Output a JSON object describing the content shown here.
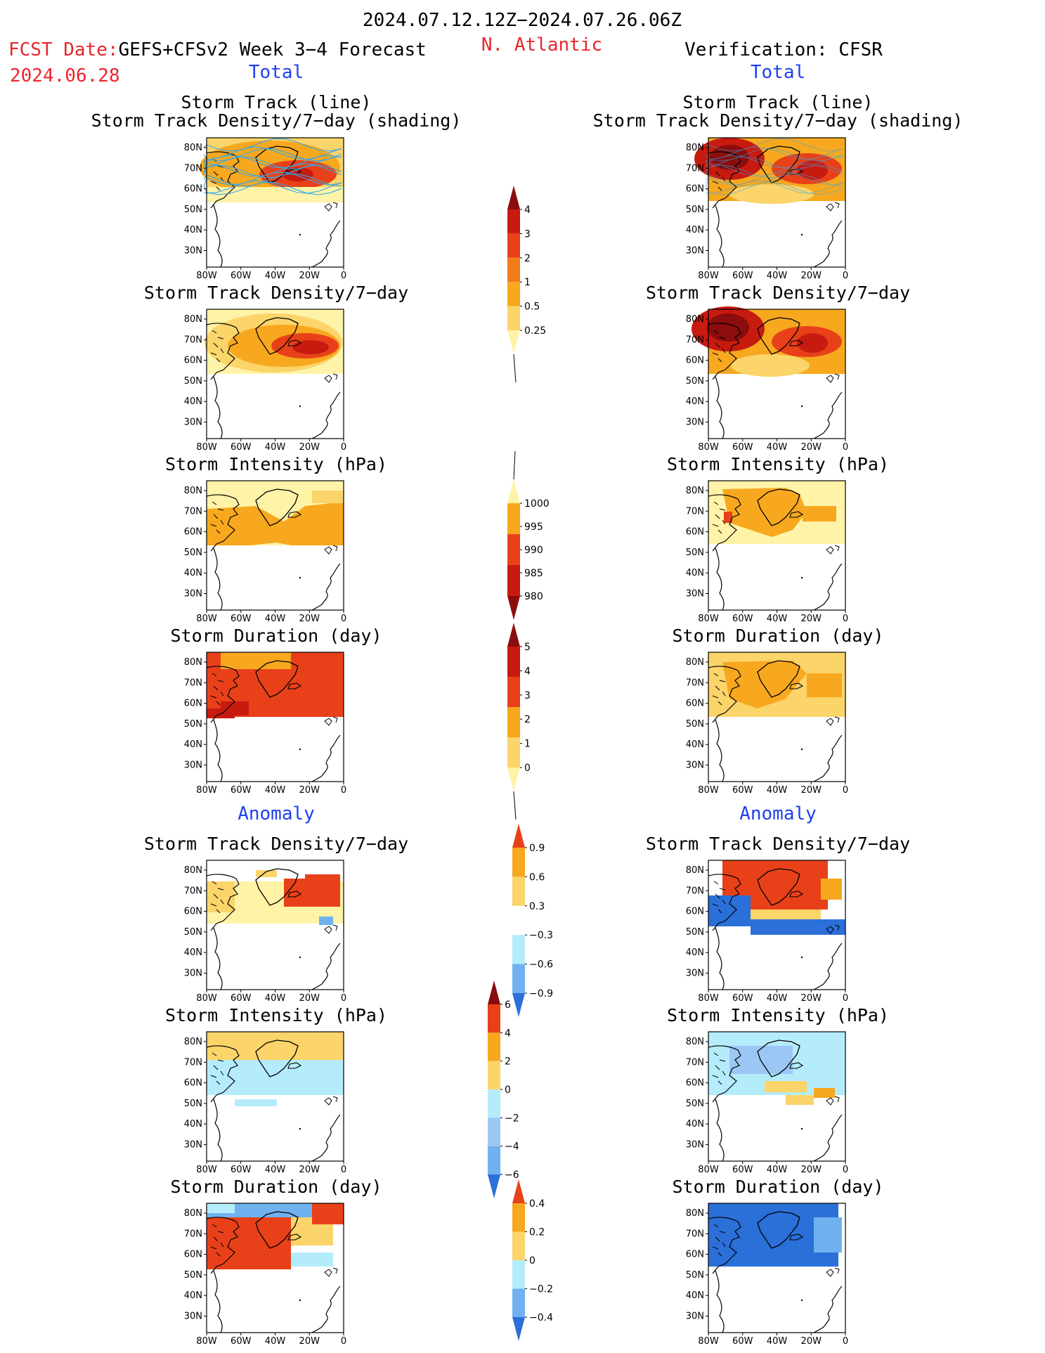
{
  "header": {
    "period": "2024.07.12.12Z−2024.07.26.06Z",
    "region": "N. Atlantic",
    "fcst_prefix": "FCST Date:",
    "fcst_model": "GEFS+CFSv2 Week 3−4 Forecast",
    "fcst_date": "2024.06.28",
    "verification": "Verification: CFSR"
  },
  "sections": {
    "total": "Total",
    "anomaly": "Anomaly"
  },
  "axes": {
    "lat_ticks": [
      "80N",
      "70N",
      "60N",
      "50N",
      "40N",
      "30N"
    ],
    "lon_ticks": [
      "80W",
      "60W",
      "40W",
      "20W",
      "0"
    ]
  },
  "panels": {
    "track_title_1": "Storm Track (line)",
    "track_title_2": "Storm Track Density/7−day (shading)",
    "density": "Storm Track Density/7−day",
    "intensity": "Storm Intensity (hPa)",
    "duration": "Storm Duration (day)"
  },
  "colorbars": {
    "density": {
      "labels": [
        "4",
        "3",
        "2",
        "1",
        "0.5",
        "0.25"
      ],
      "colors": [
        "#8b0d0d",
        "#c71b10",
        "#e8411a",
        "#f27c1a",
        "#f7a81e",
        "#fbd46a",
        "#fff3a8"
      ]
    },
    "intensity": {
      "labels": [
        "1000",
        "995",
        "990",
        "985",
        "980"
      ],
      "colors": [
        "#fff3a8",
        "#f7a81e",
        "#e8411a",
        "#c71b10",
        "#8b0d0d"
      ]
    },
    "duration": {
      "labels": [
        "5",
        "4",
        "3",
        "2",
        "1",
        "0"
      ],
      "colors": [
        "#8b0d0d",
        "#c71b10",
        "#e8411a",
        "#f7a81e",
        "#fbd46a",
        "#fff3a8"
      ]
    },
    "density_anom": {
      "labels": [
        "0.9",
        "0.6",
        "0.3",
        "−0.3",
        "−0.6",
        "−0.9"
      ],
      "colors": [
        "#e8411a",
        "#f7a81e",
        "#fbd46a",
        "#ffffff",
        "#b4ecfb",
        "#6fb2ef",
        "#2b6fd8"
      ]
    },
    "intensity_anom": {
      "labels": [
        "6",
        "4",
        "2",
        "0",
        "−2",
        "−4",
        "−6"
      ],
      "colors": [
        "#8b0d0d",
        "#e8411a",
        "#f7a81e",
        "#fbd46a",
        "#b4ecfb",
        "#9cc7f4",
        "#6fb2ef",
        "#2b6fd8"
      ]
    },
    "duration_anom": {
      "labels": [
        "0.4",
        "0.2",
        "0",
        "−0.2",
        "−0.4"
      ],
      "colors": [
        "#e8411a",
        "#f7a81e",
        "#fbd46a",
        "#b4ecfb",
        "#6fb2ef",
        "#2b6fd8"
      ]
    }
  },
  "legend_colors": {
    "pos_dark": "#8b0d0d",
    "pos_red": "#c71b10",
    "pos_orange_red": "#e8411a",
    "pos_orange": "#f7a81e",
    "pos_light": "#fbd46a",
    "pos_pale": "#fff3a8",
    "neg_pale": "#b4ecfb",
    "neg_mid": "#6fb2ef",
    "neg_dark": "#2b6fd8",
    "track_line": "#35a7e6"
  }
}
